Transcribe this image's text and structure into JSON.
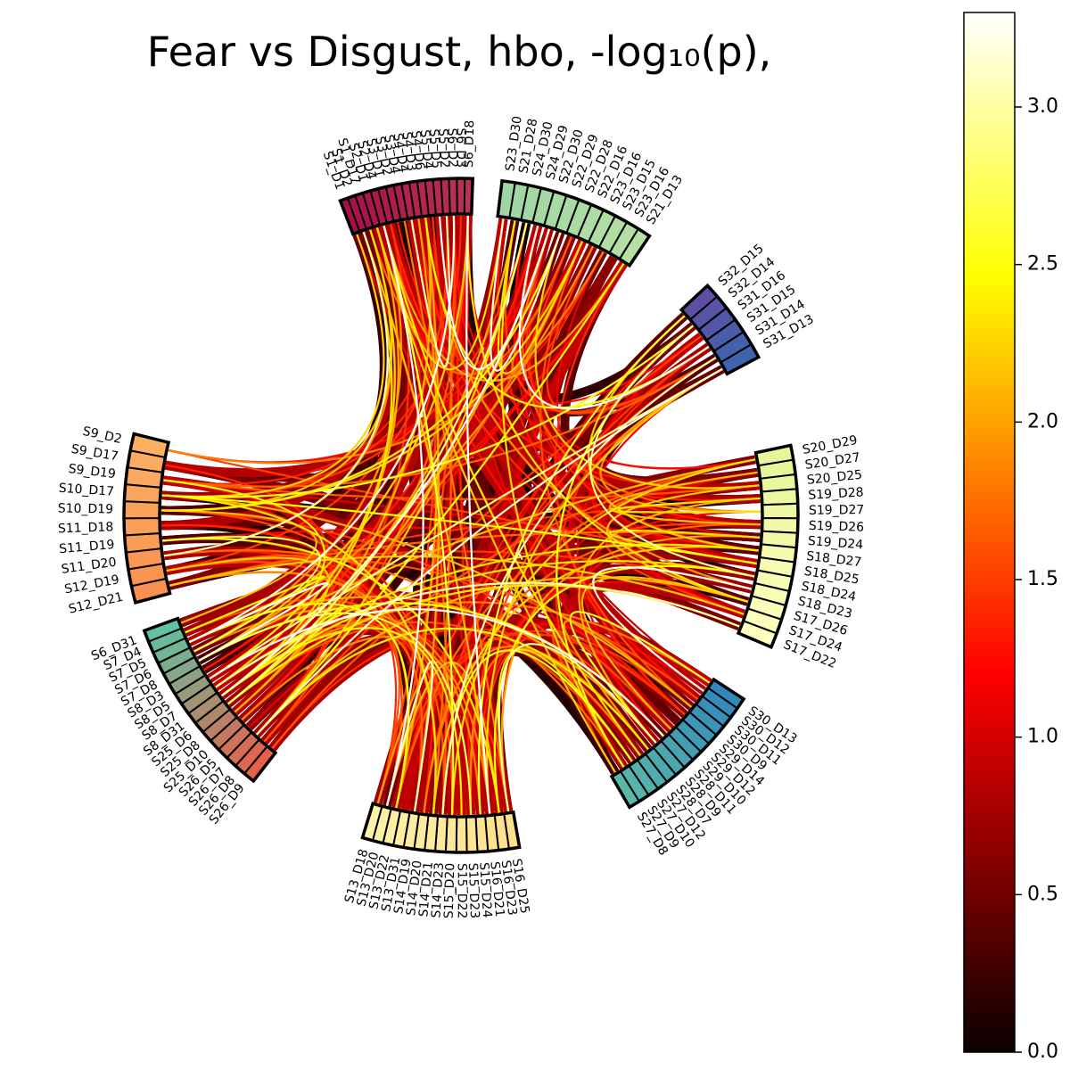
{
  "chart_data": {
    "type": "chord",
    "title": "Fear vs Disgust, hbo, -log₁₀(p),",
    "colorbar": {
      "colormap": "hot",
      "range": [
        0,
        3.3
      ],
      "ticks": [
        "0.0",
        "0.5",
        "1.0",
        "1.5",
        "2.0",
        "2.5",
        "3.0"
      ]
    },
    "groups": [
      {
        "name": "group-1",
        "color": "#a8104a",
        "nodes": [
          "S1_D1",
          "S1_D2",
          "S1_D17",
          "S2_D1",
          "S2_D4",
          "S3_D1",
          "S3_D2",
          "S3_D4",
          "S4_D4",
          "S4_D3",
          "S4_D6",
          "S5_D4",
          "S5_D5",
          "S5_D2",
          "S6_D2",
          "S6_D3",
          "S6_D18"
        ]
      },
      {
        "name": "group-2",
        "color": "#9ed6a4",
        "nodes": [
          "S23_D30",
          "S21_D28",
          "S24_D30",
          "S24_D29",
          "S22_D30",
          "S22_D29",
          "S22_D28",
          "S22_D16",
          "S23_D16",
          "S23_D15",
          "S23_D16",
          "S21_D13"
        ]
      },
      {
        "name": "group-3",
        "color": "#5e4fa2",
        "nodes": [
          "S32_D15",
          "S32_D14",
          "S31_D16",
          "S31_D15",
          "S31_D14",
          "S31_D13"
        ]
      },
      {
        "name": "group-4",
        "color": "#e6f598",
        "nodes": [
          "S20_D29",
          "S20_D27",
          "S20_D25",
          "S19_D28",
          "S19_D27",
          "S19_D26",
          "S19_D24",
          "S18_D27",
          "S18_D25",
          "S18_D24",
          "S18_D23",
          "S17_D26",
          "S17_D24",
          "S17_D22"
        ]
      },
      {
        "name": "group-5",
        "color": "#3288bd",
        "nodes": [
          "S30_D13",
          "S30_D12",
          "S30_D11",
          "S30_D9",
          "S29_D14",
          "S29_D12",
          "S29_D10",
          "S28_D11",
          "S28_D9",
          "S28_D7",
          "S27_D12",
          "S27_D10",
          "S27_D9",
          "S27_D8"
        ]
      },
      {
        "name": "group-6",
        "color": "#fee08b",
        "nodes": [
          "S16_D25",
          "S16_D23",
          "S16_D21",
          "S15_D24",
          "S15_D23",
          "S15_D22",
          "S15_D20",
          "S14_D23",
          "S14_D21",
          "S14_D20",
          "S14_D19",
          "S13_D31",
          "S13_D22",
          "S13_D20",
          "S13_D18"
        ]
      },
      {
        "name": "group-7",
        "color": "#e8604a",
        "nodes": [
          "S26_D9",
          "S26_D8",
          "S26_D7",
          "S26_D5",
          "S25_D10",
          "S25_D8",
          "S25_D6",
          "S8_D31",
          "S8_D7",
          "S8_D5",
          "S8_D3",
          "S7_D8",
          "S7_D6",
          "S7_D5",
          "S7_D4",
          "S6_D31"
        ]
      },
      {
        "name": "group-8",
        "color": "#f99050",
        "nodes": [
          "S12_D21",
          "S12_D19",
          "S11_D20",
          "S11_D19",
          "S11_D18",
          "S10_D19",
          "S10_D17",
          "S9_D19",
          "S9_D17",
          "S9_D2"
        ]
      }
    ]
  }
}
